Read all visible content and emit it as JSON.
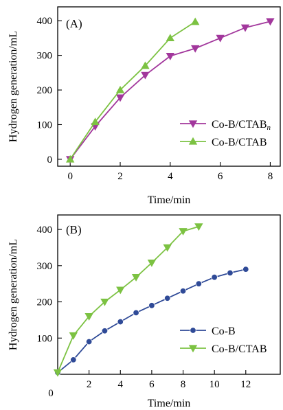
{
  "chart_data": [
    {
      "panel_label": "(A)",
      "type": "line",
      "xlabel": "Time/min",
      "ylabel": "Hydrogen generation/mL",
      "xlim": [
        -0.5,
        8.4
      ],
      "ylim": [
        -20,
        440
      ],
      "xticks": [
        0,
        2,
        4,
        6,
        8
      ],
      "yticks": [
        0,
        100,
        200,
        300,
        400
      ],
      "legend_position": "lower-right",
      "series": [
        {
          "name": "Co-B/CTAB",
          "name_sub": "n",
          "color": "#a2379c",
          "marker": "triangle-down",
          "x": [
            0,
            1,
            2,
            3,
            4,
            5,
            6,
            7,
            8
          ],
          "y": [
            0,
            95,
            178,
            243,
            298,
            320,
            350,
            380,
            398
          ]
        },
        {
          "name": "Co-B/CTAB",
          "color": "#7cc242",
          "marker": "triangle-up",
          "x": [
            0,
            1,
            2,
            3,
            4,
            5
          ],
          "y": [
            0,
            108,
            200,
            270,
            350,
            397
          ]
        }
      ]
    },
    {
      "panel_label": "(B)",
      "type": "line",
      "xlabel": "Time/min",
      "ylabel": "Hydrogen generation/mL",
      "xlim": [
        0,
        14.2
      ],
      "ylim": [
        0,
        440
      ],
      "xticks": [
        2,
        4,
        6,
        8,
        10,
        12
      ],
      "yticks": [
        100,
        200,
        300,
        400
      ],
      "origin_label": "0",
      "legend_position": "lower-right",
      "series": [
        {
          "name": "Co-B",
          "color": "#2f4a97",
          "marker": "circle",
          "x": [
            0,
            1,
            2,
            3,
            4,
            5,
            6,
            7,
            8,
            9,
            10,
            11,
            12
          ],
          "y": [
            5,
            40,
            90,
            120,
            145,
            170,
            190,
            210,
            230,
            250,
            268,
            280,
            290
          ]
        },
        {
          "name": "Co-B/CTAB",
          "color": "#7cc242",
          "marker": "triangle-down",
          "x": [
            0,
            1,
            2,
            3,
            4,
            5,
            6,
            7,
            8,
            9
          ],
          "y": [
            5,
            107,
            160,
            200,
            233,
            268,
            308,
            350,
            395,
            408
          ]
        }
      ]
    }
  ]
}
